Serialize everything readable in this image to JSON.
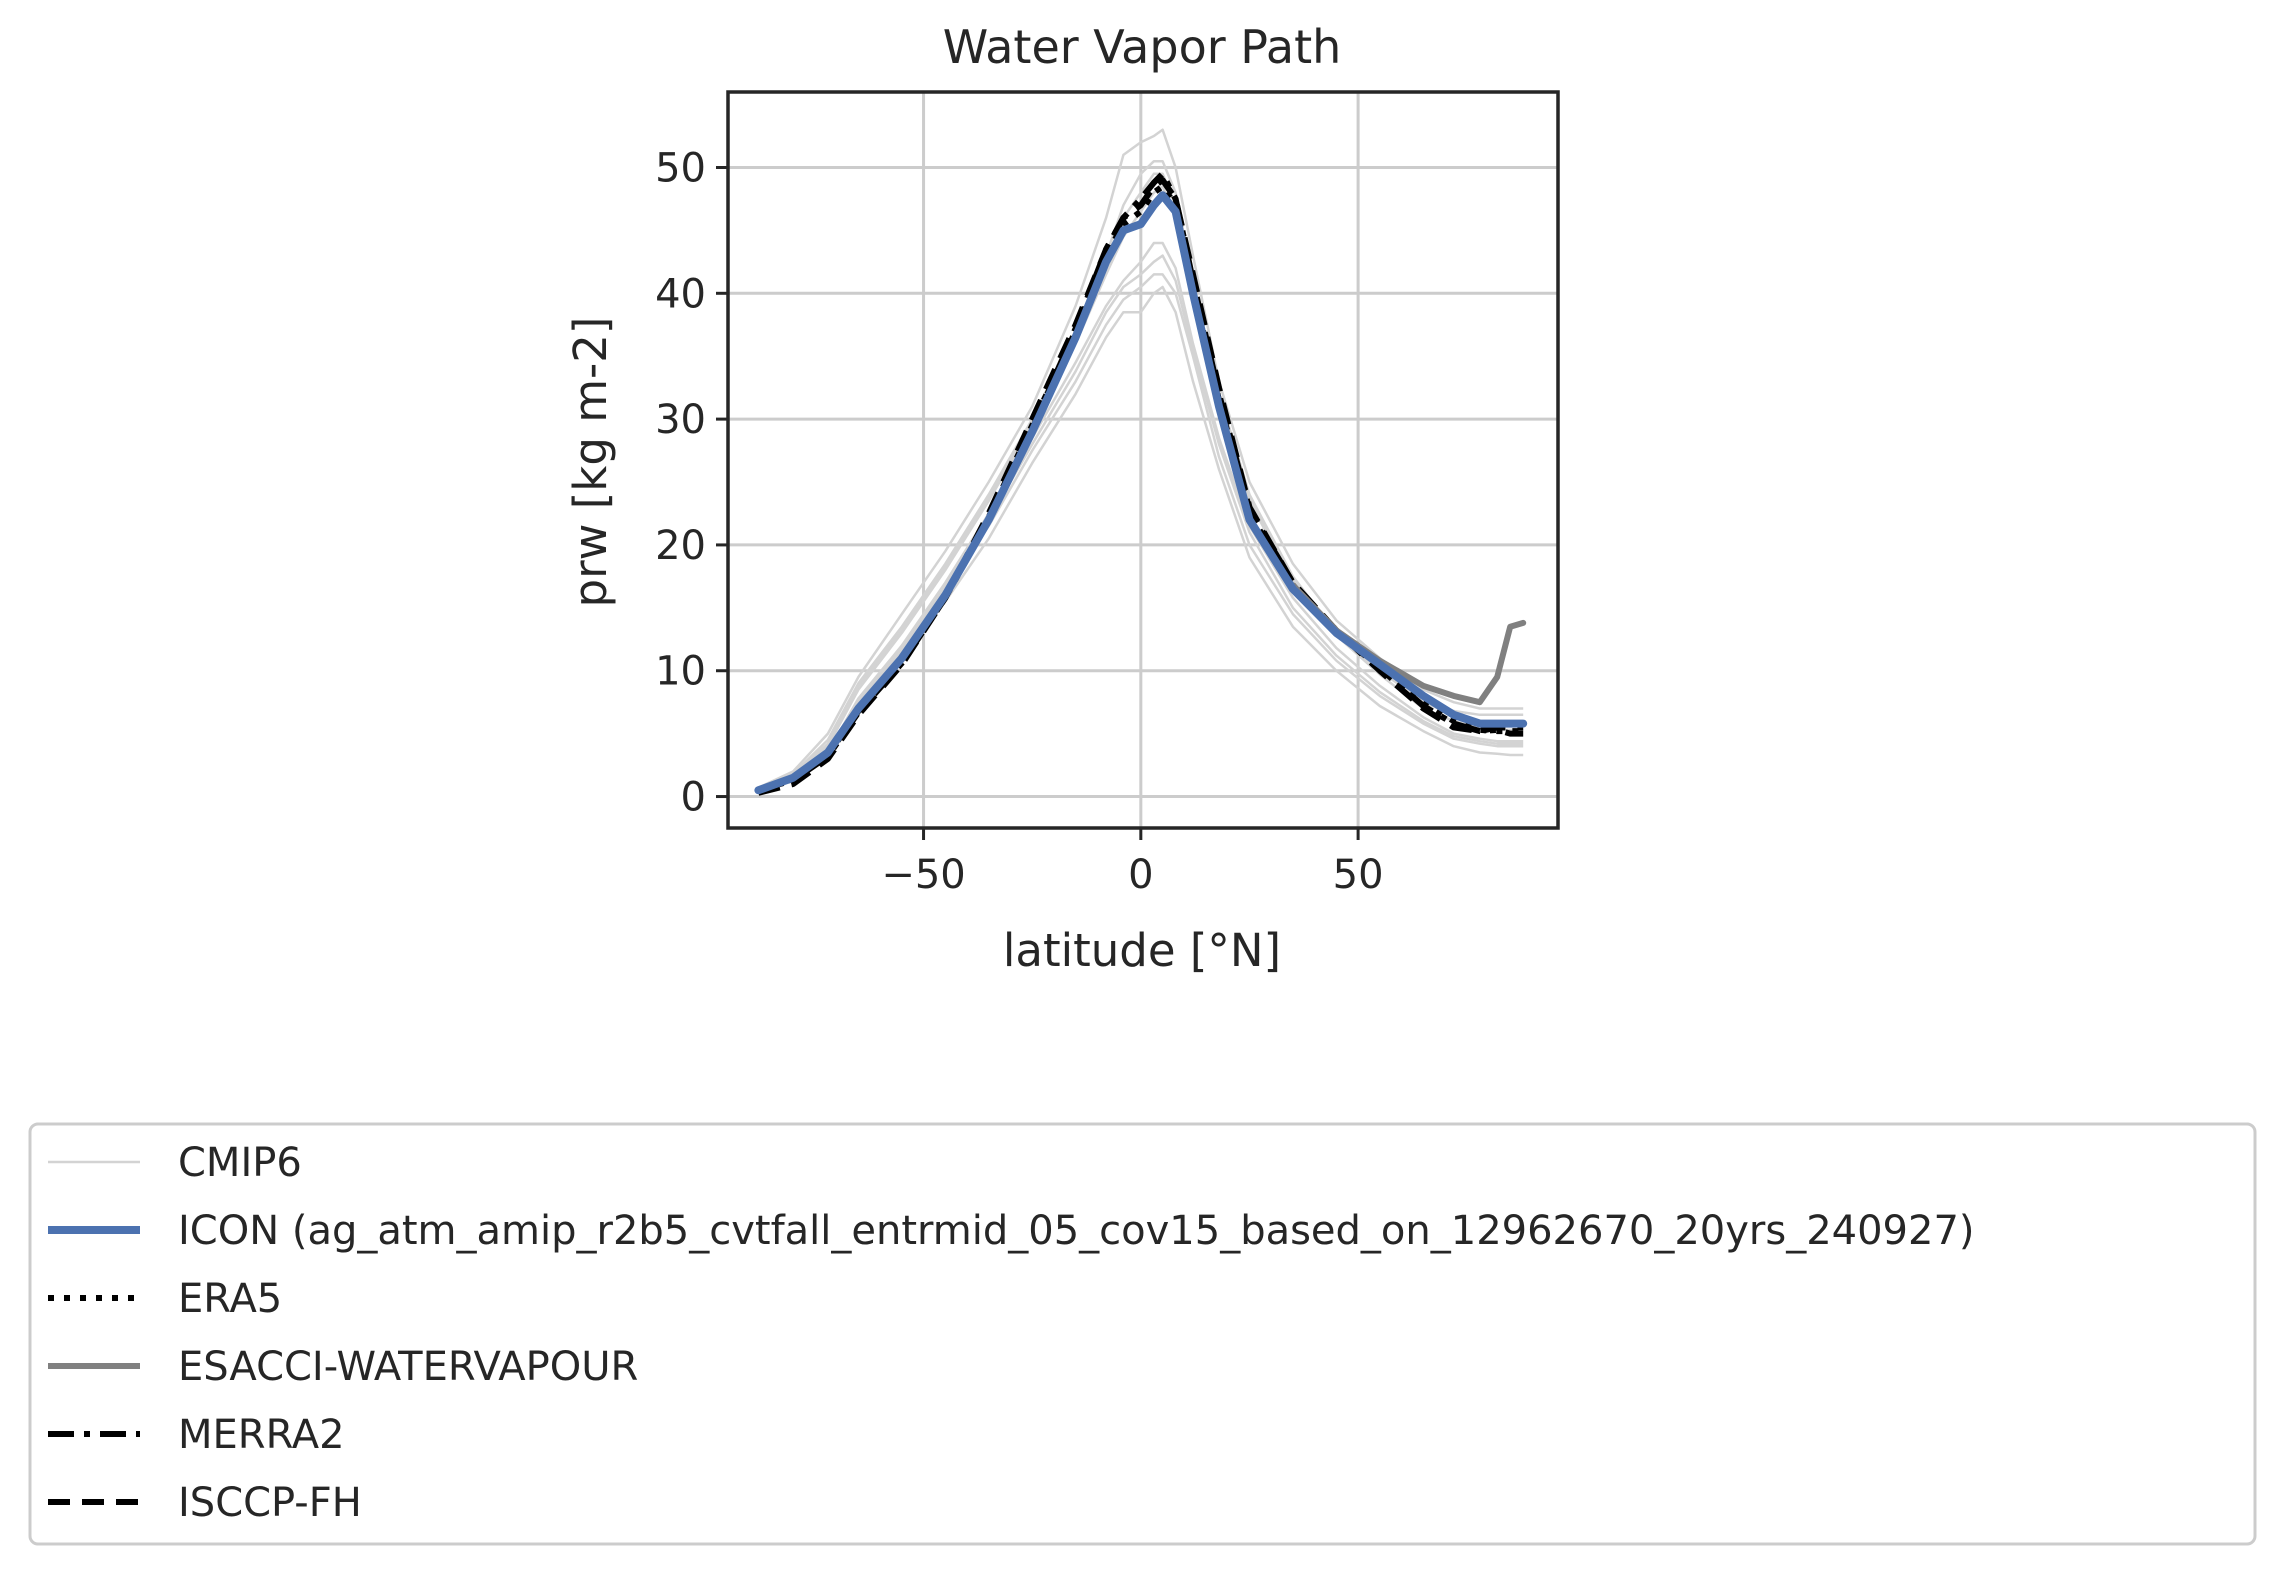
{
  "chart_data": {
    "type": "line",
    "title": "Water Vapor Path",
    "xlabel": "latitude [°N]",
    "ylabel": "prw [kg m-2]",
    "xlim": [
      -95,
      96
    ],
    "ylim": [
      -2.5,
      56
    ],
    "xticks": [
      -50,
      0,
      50
    ],
    "xtick_labels": [
      "−50",
      "0",
      "50"
    ],
    "yticks": [
      0,
      10,
      20,
      30,
      40,
      50
    ],
    "ytick_labels": [
      "0",
      "10",
      "20",
      "30",
      "40",
      "50"
    ],
    "grid": true,
    "legend_placement": "below",
    "x": [
      -88,
      -80,
      -72,
      -65,
      -55,
      -45,
      -35,
      -25,
      -15,
      -8,
      -4,
      0,
      3,
      5,
      8,
      12,
      18,
      25,
      35,
      45,
      55,
      65,
      72,
      78,
      82,
      85,
      88
    ],
    "series": [
      {
        "name": "CMIP6",
        "style": "thin",
        "color": "#d3d3d3",
        "values": [
          0.6,
          1.5,
          3.8,
          8.2,
          12.5,
          17.5,
          23.0,
          29.0,
          35.0,
          40.0,
          42.0,
          44.0,
          45.5,
          45.5,
          43.5,
          37.0,
          29.0,
          22.0,
          16.0,
          12.0,
          9.0,
          6.5,
          5.5,
          5.0,
          4.8,
          4.8,
          4.8
        ],
        "members": [
          [
            0.6,
            1.8,
            4.5,
            9.0,
            13.5,
            18.5,
            24.0,
            30.0,
            37.0,
            43.0,
            47.0,
            49.5,
            50.5,
            50.5,
            48.0,
            41.0,
            32.0,
            24.0,
            17.5,
            13.0,
            10.0,
            7.5,
            6.5,
            6.0,
            6.0,
            6.0,
            6.0
          ],
          [
            0.5,
            1.3,
            3.3,
            7.5,
            11.5,
            16.5,
            21.5,
            27.5,
            33.0,
            37.5,
            39.5,
            40.5,
            41.5,
            41.5,
            40.0,
            35.0,
            27.0,
            20.0,
            14.5,
            10.8,
            8.0,
            5.8,
            4.6,
            4.2,
            4.0,
            4.0,
            4.0
          ],
          [
            0.7,
            2.0,
            5.0,
            9.5,
            14.5,
            19.5,
            25.0,
            31.0,
            39.0,
            46.0,
            51.0,
            52.0,
            52.5,
            53.0,
            50.0,
            43.0,
            33.0,
            25.0,
            18.5,
            14.0,
            11.0,
            8.5,
            7.5,
            7.0,
            7.0,
            7.0,
            7.0
          ],
          [
            0.5,
            1.2,
            3.0,
            7.0,
            11.0,
            15.5,
            20.5,
            26.5,
            32.0,
            36.5,
            38.5,
            38.5,
            40.0,
            40.5,
            38.5,
            33.0,
            26.0,
            19.0,
            13.5,
            10.0,
            7.2,
            5.2,
            4.0,
            3.5,
            3.4,
            3.3,
            3.3
          ],
          [
            0.6,
            1.6,
            4.0,
            8.5,
            13.0,
            18.0,
            23.5,
            29.5,
            36.0,
            41.5,
            44.5,
            46.5,
            48.0,
            48.5,
            46.0,
            39.5,
            31.0,
            23.5,
            17.0,
            12.8,
            9.7,
            7.0,
            6.0,
            5.5,
            5.3,
            5.3,
            5.3
          ],
          [
            0.5,
            1.4,
            3.5,
            7.8,
            12.0,
            17.0,
            22.5,
            28.5,
            34.5,
            39.0,
            41.0,
            42.5,
            44.0,
            44.0,
            42.0,
            36.0,
            28.5,
            21.5,
            15.8,
            11.8,
            8.8,
            6.3,
            5.0,
            4.6,
            4.4,
            4.4,
            4.4
          ],
          [
            0.6,
            1.7,
            4.2,
            8.8,
            13.2,
            18.2,
            23.8,
            29.8,
            36.5,
            42.5,
            46.0,
            48.0,
            49.5,
            49.5,
            47.0,
            40.0,
            31.5,
            23.8,
            17.2,
            13.2,
            10.2,
            7.8,
            6.8,
            6.5,
            6.5,
            6.5,
            6.5
          ],
          [
            0.5,
            1.3,
            3.4,
            7.6,
            11.8,
            16.8,
            22.0,
            28.0,
            33.8,
            38.5,
            40.5,
            41.5,
            42.5,
            43.0,
            41.0,
            35.5,
            28.0,
            21.0,
            15.0,
            11.2,
            8.3,
            6.0,
            4.8,
            4.4,
            4.2,
            4.2,
            4.2
          ]
        ]
      },
      {
        "name": "ICON (ag_atm_amip_r2b5_cvtfall_entrmid_05_cov15_based_on_12962670_20yrs_240927)",
        "style": "thick",
        "color": "#4c72b0",
        "values": [
          0.5,
          1.5,
          3.5,
          7.0,
          11.0,
          16.0,
          22.0,
          29.0,
          36.5,
          42.5,
          45.0,
          45.5,
          47.0,
          47.8,
          46.5,
          40.0,
          31.0,
          22.0,
          16.5,
          13.0,
          10.5,
          8.0,
          6.5,
          5.8,
          5.8,
          5.8,
          5.8
        ]
      },
      {
        "name": "ERA5",
        "style": "dotted",
        "color": "#000000",
        "values": [
          0.5,
          1.4,
          3.3,
          6.8,
          10.8,
          16.0,
          22.2,
          29.5,
          37.0,
          43.0,
          45.5,
          46.5,
          48.0,
          48.5,
          47.0,
          40.5,
          31.5,
          22.5,
          16.8,
          13.0,
          10.3,
          7.5,
          6.0,
          5.3,
          5.2,
          5.2,
          5.2
        ]
      },
      {
        "name": "ESACCI-WATERVAPOUR",
        "style": "solid",
        "color": "#808080",
        "values": [
          null,
          null,
          null,
          null,
          null,
          null,
          null,
          null,
          null,
          null,
          null,
          null,
          null,
          null,
          null,
          null,
          null,
          null,
          16.8,
          13.2,
          10.8,
          8.8,
          8.0,
          7.5,
          9.5,
          13.5,
          13.8
        ]
      },
      {
        "name": "MERRA2",
        "style": "dashdot",
        "color": "#000000",
        "values": [
          0.5,
          1.3,
          3.2,
          6.7,
          10.6,
          15.8,
          22.0,
          29.2,
          37.2,
          43.5,
          46.0,
          47.5,
          48.8,
          49.5,
          47.5,
          41.0,
          32.0,
          22.8,
          17.0,
          13.2,
          10.2,
          7.2,
          5.8,
          5.2,
          5.3,
          5.0,
          5.0
        ]
      },
      {
        "name": "ISCCP-FH",
        "style": "dashed",
        "color": "#000000",
        "values": [
          0.3,
          1.0,
          3.0,
          6.5,
          10.5,
          15.8,
          22.5,
          30.0,
          37.5,
          43.5,
          46.0,
          47.0,
          48.5,
          49.0,
          47.5,
          41.5,
          32.5,
          23.0,
          17.0,
          13.2,
          10.0,
          7.0,
          5.5,
          5.2,
          5.5,
          5.5,
          5.5
        ]
      }
    ]
  }
}
